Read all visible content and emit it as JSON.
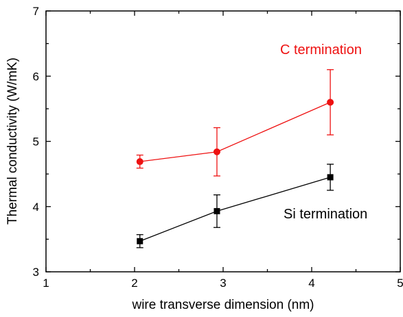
{
  "chart_data": {
    "type": "scatter",
    "xlabel": "wire transverse dimension (nm)",
    "ylabel": "Thermal conductivity (W/mK)",
    "xlim": [
      1,
      5
    ],
    "ylim": [
      3,
      7
    ],
    "xticks": [
      1,
      2,
      3,
      4,
      5
    ],
    "yticks": [
      3,
      4,
      5,
      6,
      7
    ],
    "grid": false,
    "legend": "none",
    "annotations": [
      {
        "text": "C termination",
        "color": "#ee1111"
      },
      {
        "text": "Si termination",
        "color": "#000000"
      }
    ],
    "series": [
      {
        "color": "#ee1111",
        "marker": "circle",
        "points": [
          {
            "x": 2.06,
            "y": 4.69,
            "err": 0.1
          },
          {
            "x": 2.93,
            "y": 4.84,
            "err": 0.37
          },
          {
            "x": 4.21,
            "y": 5.6,
            "err": 0.5
          }
        ]
      },
      {
        "color": "#000000",
        "marker": "square",
        "points": [
          {
            "x": 2.06,
            "y": 3.47,
            "err": 0.1
          },
          {
            "x": 2.93,
            "y": 3.93,
            "err": 0.25
          },
          {
            "x": 4.21,
            "y": 4.45,
            "err": 0.2
          }
        ]
      }
    ]
  }
}
